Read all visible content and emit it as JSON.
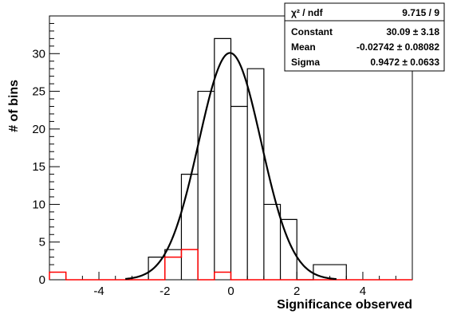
{
  "chart_data": {
    "type": "histogram",
    "xlabel": "Significance observed",
    "ylabel": "# of bins",
    "xlim": [
      -5.5,
      5.5
    ],
    "ylim": [
      0,
      35
    ],
    "x_ticks": [
      -4,
      -2,
      0,
      2,
      4
    ],
    "x_tick_labels": [
      "-4",
      "-2",
      "0",
      "2",
      "4"
    ],
    "y_ticks": [
      0,
      5,
      10,
      15,
      20,
      25,
      30
    ],
    "y_tick_labels": [
      "0",
      "5",
      "10",
      "15",
      "20",
      "25",
      "30"
    ],
    "grid": false,
    "series": [
      {
        "color": "#000000",
        "bins": [
          {
            "x0": -2.5,
            "x1": -2.0,
            "value": 3
          },
          {
            "x0": -2.0,
            "x1": -1.5,
            "value": 4
          },
          {
            "x0": -1.5,
            "x1": -1.0,
            "value": 14
          },
          {
            "x0": -1.0,
            "x1": -0.5,
            "value": 25
          },
          {
            "x0": -0.5,
            "x1": 0.0,
            "value": 32
          },
          {
            "x0": 0.0,
            "x1": 0.5,
            "value": 23
          },
          {
            "x0": 0.5,
            "x1": 1.0,
            "value": 28
          },
          {
            "x0": 1.0,
            "x1": 1.5,
            "value": 10
          },
          {
            "x0": 1.5,
            "x1": 2.0,
            "value": 8
          },
          {
            "x0": 2.0,
            "x1": 2.5,
            "value": 0
          },
          {
            "x0": 2.5,
            "x1": 3.5,
            "value": 2
          }
        ]
      },
      {
        "color": "#ff0000",
        "bins": [
          {
            "x0": -5.5,
            "x1": -5.0,
            "value": 1
          },
          {
            "x0": -5.0,
            "x1": -2.0,
            "value": 0
          },
          {
            "x0": -2.0,
            "x1": -1.5,
            "value": 3
          },
          {
            "x0": -1.5,
            "x1": -1.0,
            "value": 4
          },
          {
            "x0": -1.0,
            "x1": -0.5,
            "value": 0
          },
          {
            "x0": -0.5,
            "x1": 0.0,
            "value": 1
          },
          {
            "x0": 0.0,
            "x1": 5.5,
            "value": 0
          }
        ]
      }
    ],
    "fit": {
      "function": "gaus",
      "color": "#000000",
      "constant": 30.09,
      "mean": -0.02742,
      "sigma": 0.9472
    },
    "stats_box": {
      "placement": "top-right",
      "rows": [
        {
          "label": "χ² / ndf",
          "value": "9.715 / 9"
        },
        {
          "label": "Constant",
          "value": "30.09 ± 3.18"
        },
        {
          "label": "Mean",
          "value": "-0.02742 ± 0.08082"
        },
        {
          "label": "Sigma",
          "value": "0.9472 ± 0.0633"
        }
      ]
    }
  }
}
